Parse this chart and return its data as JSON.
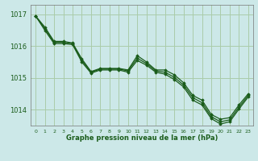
{
  "bg_color": "#cce8e8",
  "grid_color": "#aaccaa",
  "line_color": "#1a5c1a",
  "xlabel": "Graphe pression niveau de la mer (hPa)",
  "xlim": [
    -0.5,
    23.5
  ],
  "ylim": [
    1013.5,
    1017.3
  ],
  "yticks": [
    1014,
    1015,
    1016,
    1017
  ],
  "xticks": [
    0,
    1,
    2,
    3,
    4,
    5,
    6,
    7,
    8,
    9,
    10,
    11,
    12,
    13,
    14,
    15,
    16,
    17,
    18,
    19,
    20,
    21,
    22,
    23
  ],
  "series": [
    [
      1016.95,
      1016.6,
      1016.15,
      1016.15,
      1016.1,
      1015.6,
      1015.2,
      1015.3,
      1015.3,
      1015.3,
      1015.25,
      1015.7,
      1015.5,
      1015.25,
      1015.25,
      1015.1,
      1014.85,
      1014.45,
      1014.3,
      1013.85,
      1013.7,
      1013.75,
      1014.15,
      1014.5
    ],
    [
      1016.95,
      1016.55,
      1016.12,
      1016.12,
      1016.08,
      1015.55,
      1015.18,
      1015.28,
      1015.28,
      1015.28,
      1015.22,
      1015.62,
      1015.45,
      1015.22,
      1015.18,
      1015.02,
      1014.78,
      1014.38,
      1014.22,
      1013.78,
      1013.62,
      1013.68,
      1014.08,
      1014.45
    ],
    [
      1016.95,
      1016.5,
      1016.08,
      1016.08,
      1016.05,
      1015.5,
      1015.15,
      1015.25,
      1015.25,
      1015.25,
      1015.18,
      1015.55,
      1015.4,
      1015.18,
      1015.12,
      1014.95,
      1014.72,
      1014.3,
      1014.15,
      1013.72,
      1013.55,
      1013.62,
      1014.02,
      1014.4
    ]
  ]
}
